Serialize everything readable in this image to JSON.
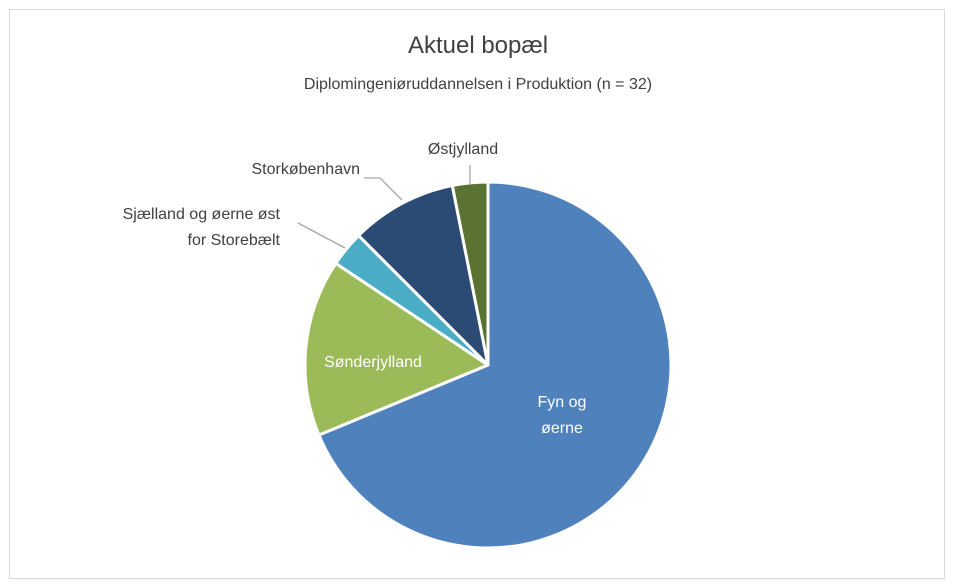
{
  "chart_data": {
    "type": "pie",
    "title": "Aktuel bopæl",
    "subtitle": "Diplomingeniøruddannelsen i Produktion (n = 32)",
    "categories": [
      "Fyn og øerne",
      "Sønderjylland",
      "Sjælland og øerne øst for Storebælt",
      "Storkøbenhavn",
      "Østjylland"
    ],
    "values": [
      22,
      5,
      1,
      3,
      1
    ],
    "colors": [
      "#4f81bd",
      "#9bbb59",
      "#4bacc6",
      "#2c4b74",
      "#5a7232"
    ]
  }
}
